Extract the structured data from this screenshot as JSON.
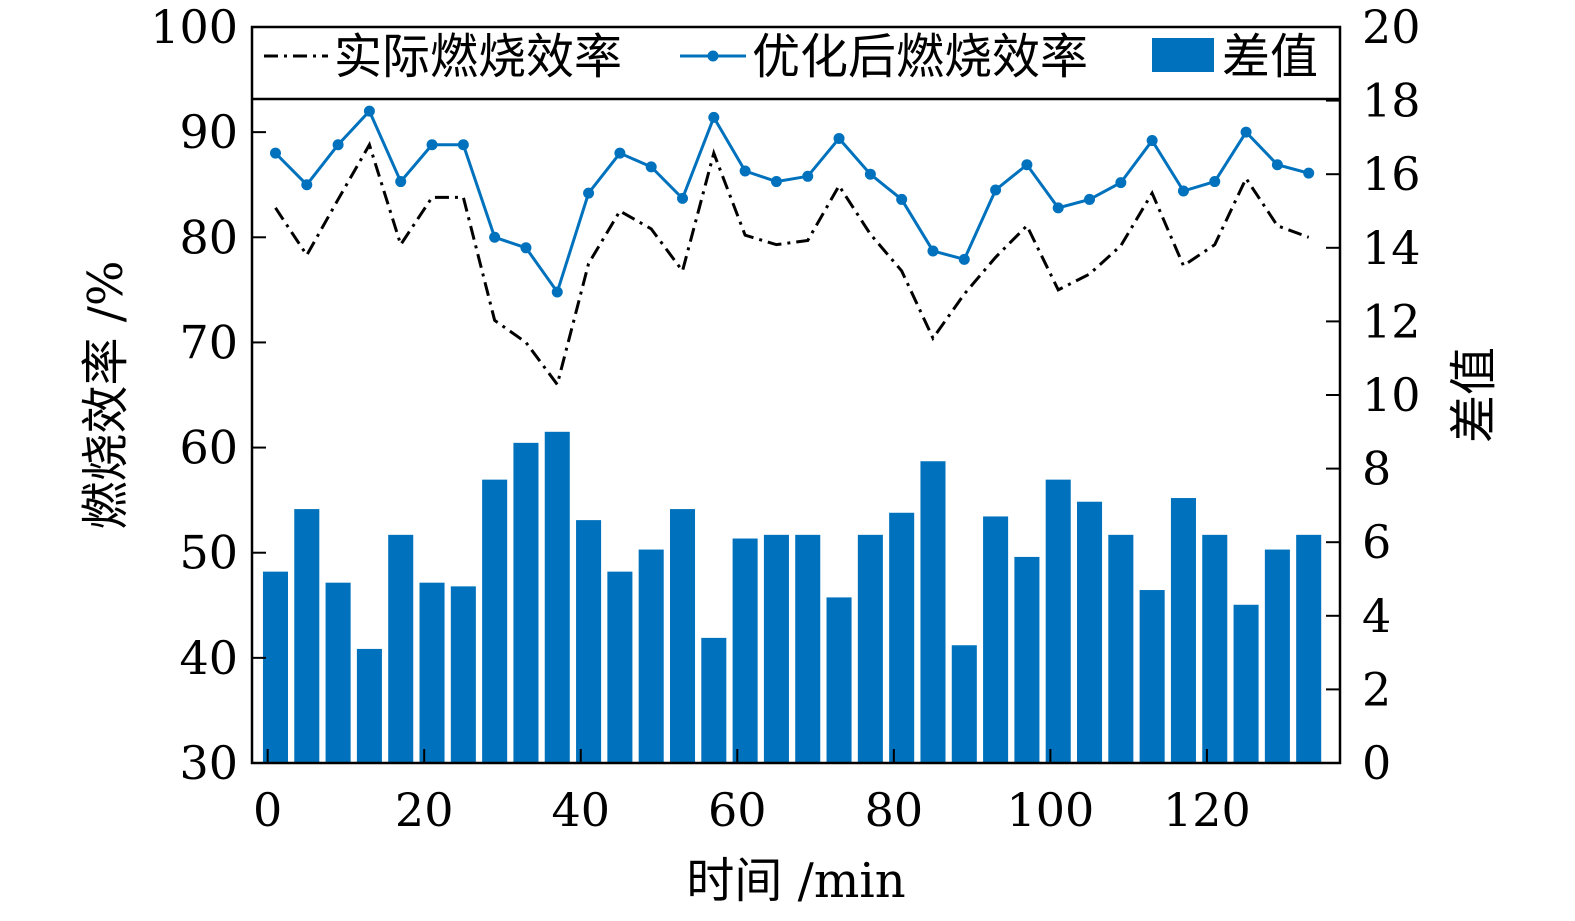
{
  "chart_data": {
    "type": "bar",
    "xlabel": "时间 /min",
    "ylabel_left": "燃烧效率 /%",
    "ylabel_right": "差值",
    "xlim": [
      -2,
      137
    ],
    "xticks": [
      0,
      20,
      40,
      60,
      80,
      100,
      120
    ],
    "ylim_left": [
      30,
      100
    ],
    "yticks_left": [
      30,
      40,
      50,
      60,
      70,
      80,
      90,
      100
    ],
    "ylim_right": [
      0,
      20
    ],
    "yticks_right": [
      0,
      2,
      4,
      6,
      8,
      10,
      12,
      14,
      16,
      18,
      20
    ],
    "grid": false,
    "legend_position": "top",
    "x": [
      1,
      5,
      9,
      13,
      17,
      21,
      25,
      29,
      33,
      37,
      41,
      45,
      49,
      53,
      57,
      61,
      65,
      69,
      73,
      77,
      81,
      85,
      89,
      93,
      97,
      101,
      105,
      109,
      113,
      117,
      121,
      125,
      129,
      133
    ],
    "series": [
      {
        "name": "实际燃烧效率",
        "axis": "left",
        "kind": "line",
        "style": "dashdot",
        "color": "#000000",
        "values": [
          82.8,
          78.3,
          83.6,
          88.8,
          79.3,
          83.8,
          83.8,
          72.1,
          70.0,
          66.0,
          77.5,
          82.5,
          80.8,
          76.8,
          88.0,
          80.2,
          79.3,
          79.7,
          84.9,
          80.3,
          76.8,
          70.4,
          74.6,
          78.1,
          81.1,
          75.0,
          76.5,
          79.2,
          84.2,
          77.3,
          79.3,
          85.6,
          81.1,
          80.0
        ]
      },
      {
        "name": "优化后燃烧效率",
        "axis": "left",
        "kind": "line",
        "style": "solid-marker",
        "color": "#0072BD",
        "values": [
          88.0,
          85.0,
          88.8,
          92.0,
          85.3,
          88.8,
          88.8,
          80.0,
          79.0,
          74.8,
          84.2,
          88.0,
          86.7,
          83.7,
          91.4,
          86.3,
          85.3,
          85.8,
          89.4,
          86.0,
          83.6,
          78.7,
          77.9,
          84.5,
          86.9,
          82.8,
          83.6,
          85.2,
          89.2,
          84.4,
          85.3,
          90.0,
          86.9,
          86.1
        ]
      },
      {
        "name": "差值",
        "axis": "right",
        "kind": "bar",
        "color": "#0072BD",
        "values": [
          5.2,
          6.9,
          4.9,
          3.1,
          6.2,
          4.9,
          4.8,
          7.7,
          8.7,
          9.0,
          6.6,
          5.2,
          5.8,
          6.9,
          3.4,
          6.1,
          6.2,
          6.2,
          4.5,
          6.2,
          6.8,
          8.2,
          3.2,
          6.7,
          5.6,
          7.7,
          7.1,
          6.2,
          4.7,
          7.2,
          6.2,
          4.3,
          5.8,
          6.2
        ]
      }
    ]
  }
}
